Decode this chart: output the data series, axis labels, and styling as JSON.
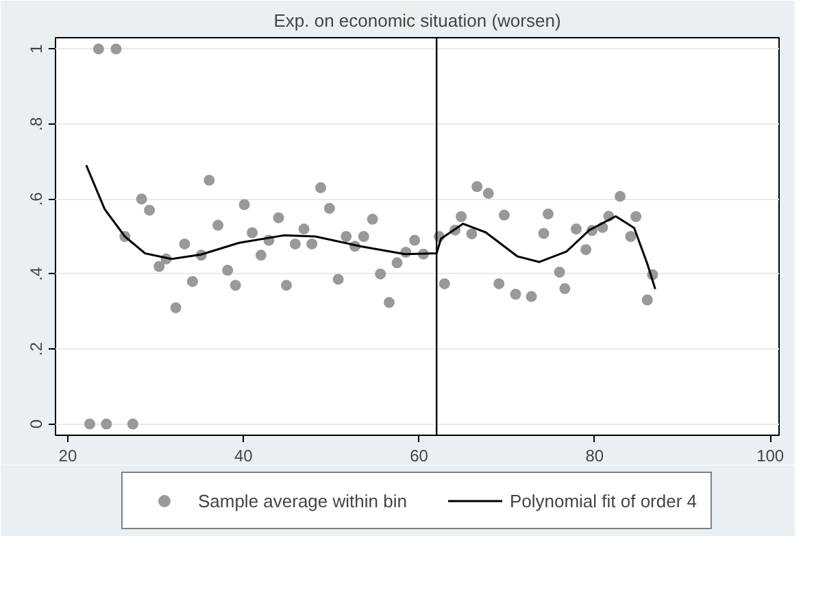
{
  "chart_data": {
    "type": "scatter",
    "title": "Exp. on economic situation (worsen)",
    "xlim": [
      18.6,
      101
    ],
    "ylim": [
      -0.03,
      1.03
    ],
    "xticks": [
      20,
      40,
      60,
      80,
      100
    ],
    "yticks": [
      {
        "value": 0,
        "label": "0"
      },
      {
        "value": 0.2,
        "label": ".2"
      },
      {
        "value": 0.4,
        "label": ".4"
      },
      {
        "value": 0.6,
        "label": ".6"
      },
      {
        "value": 0.8,
        "label": ".8"
      },
      {
        "value": 1,
        "label": "1"
      }
    ],
    "grid": "y",
    "legend": "bottom",
    "marker": "circle",
    "ref_lines": [
      {
        "axis": "x",
        "value": 62,
        "color": "#000000"
      }
    ],
    "series": [
      {
        "name": "Sample average within bin",
        "color": "#999999",
        "x": [
          22.5,
          23.5,
          24.4,
          25.5,
          26.5,
          27.4,
          28.4,
          29.3,
          30.4,
          31.2,
          32.3,
          33.3,
          34.2,
          35.2,
          36.1,
          37.1,
          38.2,
          39.1,
          40.1,
          41,
          42,
          42.9,
          44,
          44.9,
          45.9,
          46.9,
          47.8,
          48.8,
          49.8,
          50.8,
          51.7,
          52.7,
          53.7,
          54.7,
          55.6,
          56.6,
          57.5,
          58.5,
          59.5,
          60.5,
          62.3,
          62.9,
          64.1,
          64.8,
          66,
          66.6,
          67.9,
          69.1,
          69.7,
          71,
          72.8,
          74.2,
          74.7,
          76,
          76.6,
          77.9,
          79,
          79.7,
          80.9,
          81.6,
          82.9,
          84.1,
          84.7,
          86,
          86.6
        ],
        "values": [
          0,
          1,
          0,
          1,
          0.5,
          0,
          0.6,
          0.57,
          0.42,
          0.44,
          0.31,
          0.48,
          0.38,
          0.45,
          0.65,
          0.53,
          0.41,
          0.37,
          0.585,
          0.51,
          0.45,
          0.49,
          0.55,
          0.37,
          0.48,
          0.52,
          0.48,
          0.63,
          0.575,
          0.386,
          0.5,
          0.474,
          0.5,
          0.546,
          0.4,
          0.324,
          0.43,
          0.458,
          0.49,
          0.453,
          0.5,
          0.374,
          0.517,
          0.553,
          0.507,
          0.633,
          0.615,
          0.374,
          0.557,
          0.346,
          0.34,
          0.508,
          0.56,
          0.405,
          0.361,
          0.52,
          0.465,
          0.516,
          0.524,
          0.554,
          0.607,
          0.5,
          0.553,
          0.331,
          0.398
        ]
      },
      {
        "name": "Polynomial fit of order 4",
        "type": "line",
        "color": "#000000",
        "marker": "none",
        "line_style": "solid",
        "x": [
          22.1,
          24.2,
          26.5,
          28.8,
          31.8,
          35.2,
          39.5,
          44.6,
          48.2,
          53.3,
          58.4,
          62,
          62.5,
          65,
          67.6,
          71.2,
          73.7,
          76.8,
          79.4,
          82.4,
          84.5,
          86,
          86.9
        ],
        "values": [
          0.69,
          0.573,
          0.5,
          0.455,
          0.44,
          0.452,
          0.483,
          0.503,
          0.5,
          0.474,
          0.453,
          0.455,
          0.494,
          0.534,
          0.511,
          0.447,
          0.432,
          0.46,
          0.517,
          0.554,
          0.523,
          0.427,
          0.36
        ]
      }
    ]
  }
}
